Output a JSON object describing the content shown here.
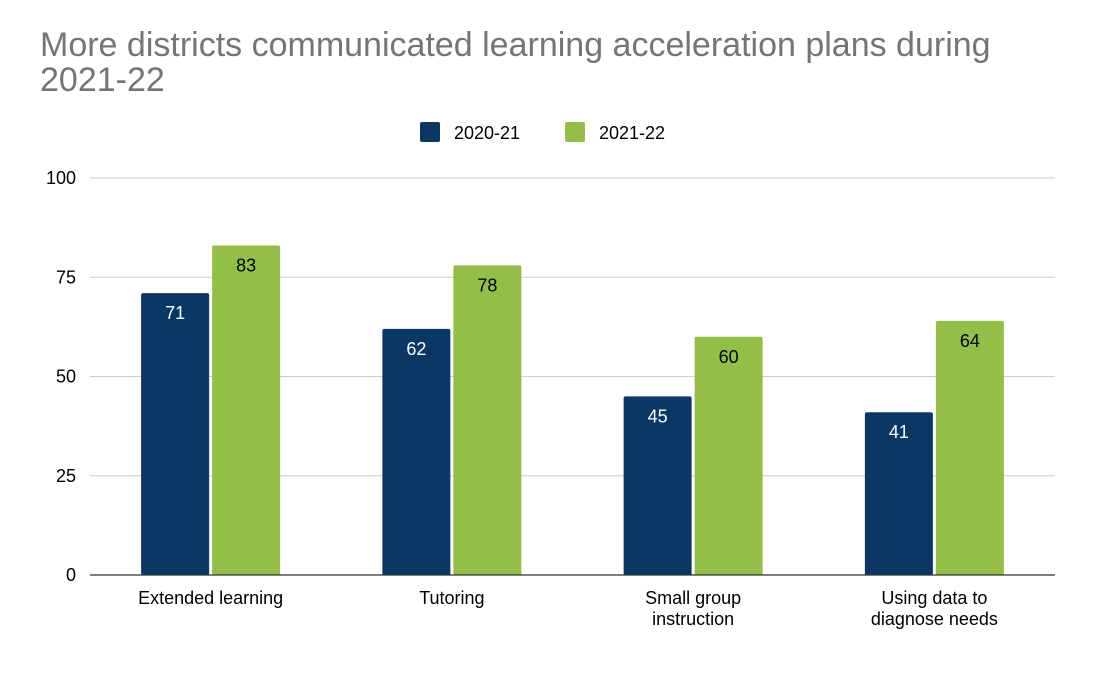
{
  "chart_data": {
    "type": "bar",
    "title": "More districts communicated learning acceleration plans during 2021-22",
    "categories": [
      [
        "Extended learning"
      ],
      [
        "Tutoring"
      ],
      [
        "Small group",
        "instruction"
      ],
      [
        "Using data to",
        "diagnose needs"
      ]
    ],
    "series": [
      {
        "name": "2020-21",
        "color": "#0b3764",
        "label_color": "#ffffff",
        "values": [
          71,
          62,
          45,
          41
        ]
      },
      {
        "name": "2021-22",
        "color": "#93bf47",
        "label_color": "#000000",
        "values": [
          83,
          78,
          60,
          64
        ]
      }
    ],
    "ylim": [
      0,
      100
    ],
    "yticks": [
      0,
      25,
      50,
      75,
      100
    ],
    "xlabel": "",
    "ylabel": "",
    "grid": true,
    "legend_position": "top"
  }
}
